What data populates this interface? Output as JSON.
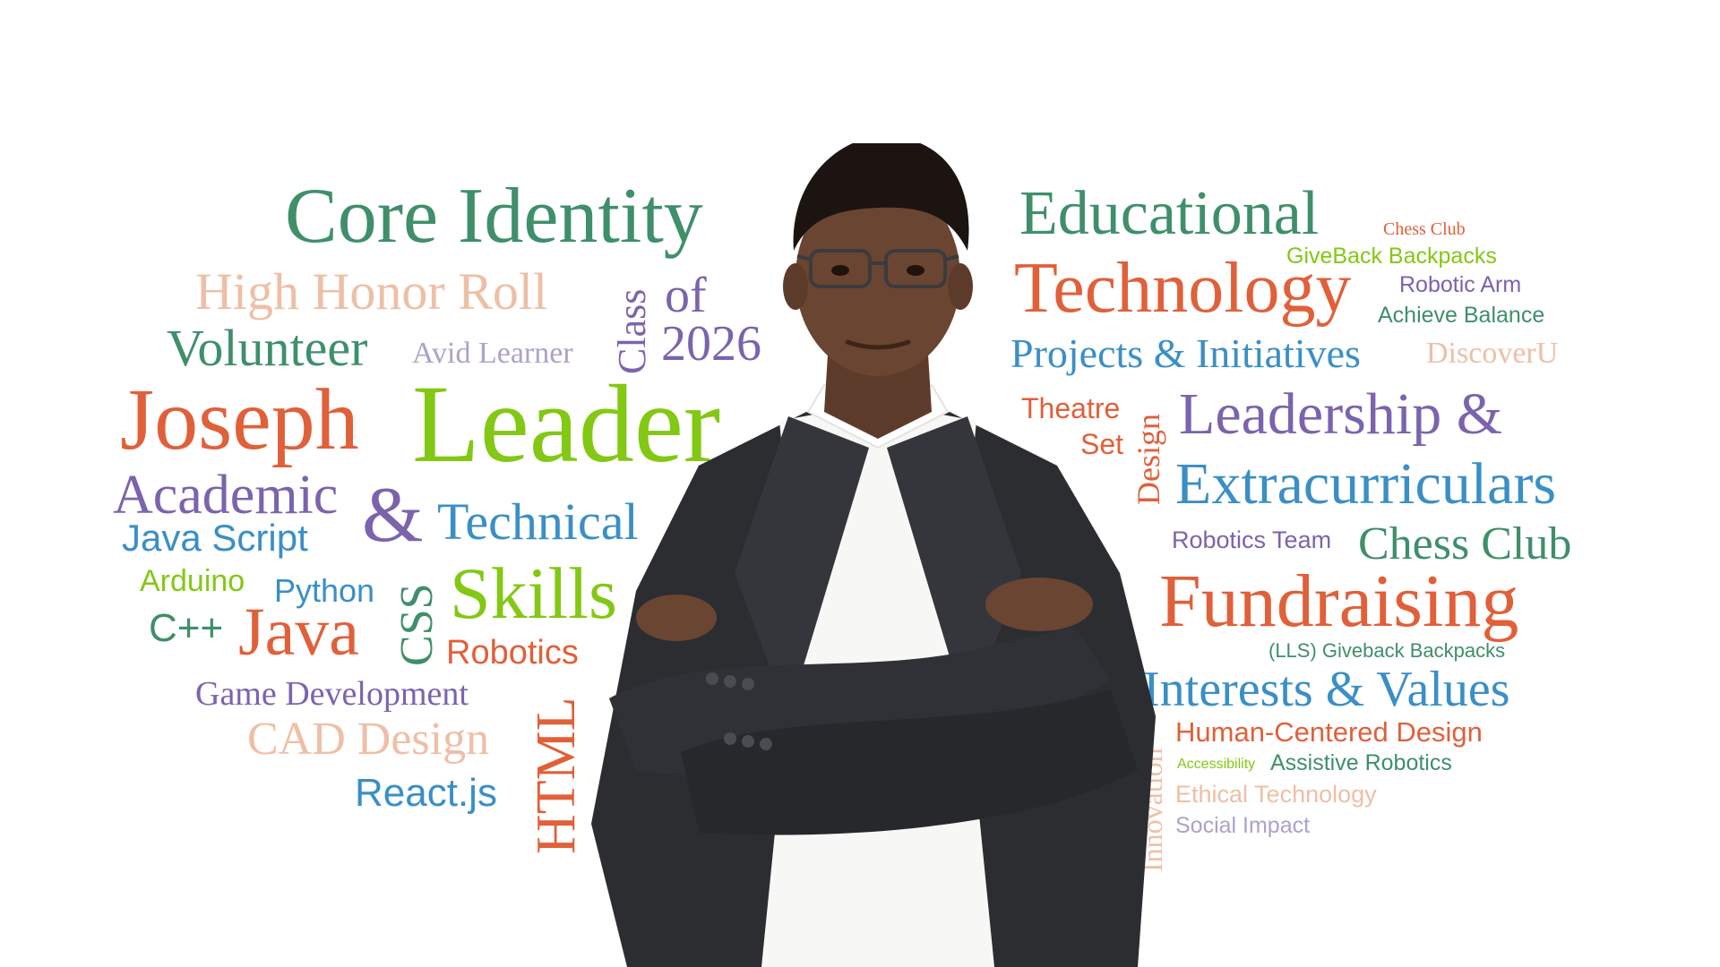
{
  "palette": {
    "green": "#3f8f6a",
    "orange": "#e0603a",
    "purple": "#7b63ad",
    "blue": "#3a8fc6",
    "lime": "#83c814",
    "peach": "#eebfa6",
    "lavender": "#a9a3cc",
    "jacket": "#2b2d31",
    "shirt": "#f7f7f5",
    "skin": "#6a4532",
    "hair": "#1c1411"
  },
  "words": {
    "core_identity": "Core Identity",
    "high_honor_roll": "High Honor Roll",
    "volunteer": "Volunteer",
    "avid_learner": "Avid Learner",
    "class": "Class",
    "of": "of",
    "year": "2026",
    "joseph": "Joseph",
    "leader": "Leader",
    "academic": "Academic",
    "ampersand": "&",
    "technical": "Technical",
    "java_script": "Java Script",
    "arduino": "Arduino",
    "python": "Python",
    "skills": "Skills",
    "css": "CSS",
    "cpp": "C++",
    "java": "Java",
    "robotics": "Robotics",
    "game_development": "Game Development",
    "cad_design": "CAD Design",
    "html": "HTML",
    "react": "React.js",
    "educational": "Educational",
    "chess_club_small": "Chess Club",
    "giveback_backpacks": "GiveBack Backpacks",
    "technology": "Technology",
    "robotic_arm": "Robotic Arm",
    "achieve_balance": "Achieve Balance",
    "projects_initiatives": "Projects & Initiatives",
    "discoveru": "DiscoverU",
    "theatre": "Theatre",
    "set": "Set",
    "design_vertical": "Design",
    "leadership": "Leadership &",
    "extracurriculars": "Extracurriculars",
    "robotics_team": "Robotics Team",
    "chess_club": "Chess Club",
    "fundraising": "Fundraising",
    "lls_giveback": "(LLS) Giveback Backpacks",
    "interests_values": "Interests & Values",
    "human_centered_design": "Human-Centered Design",
    "innovation": "Innovation",
    "accessibility": "Accessibility",
    "assistive_robotics": "Assistive Robotics",
    "ethical_technology": "Ethical Technology",
    "social_impact": "Social Impact"
  }
}
